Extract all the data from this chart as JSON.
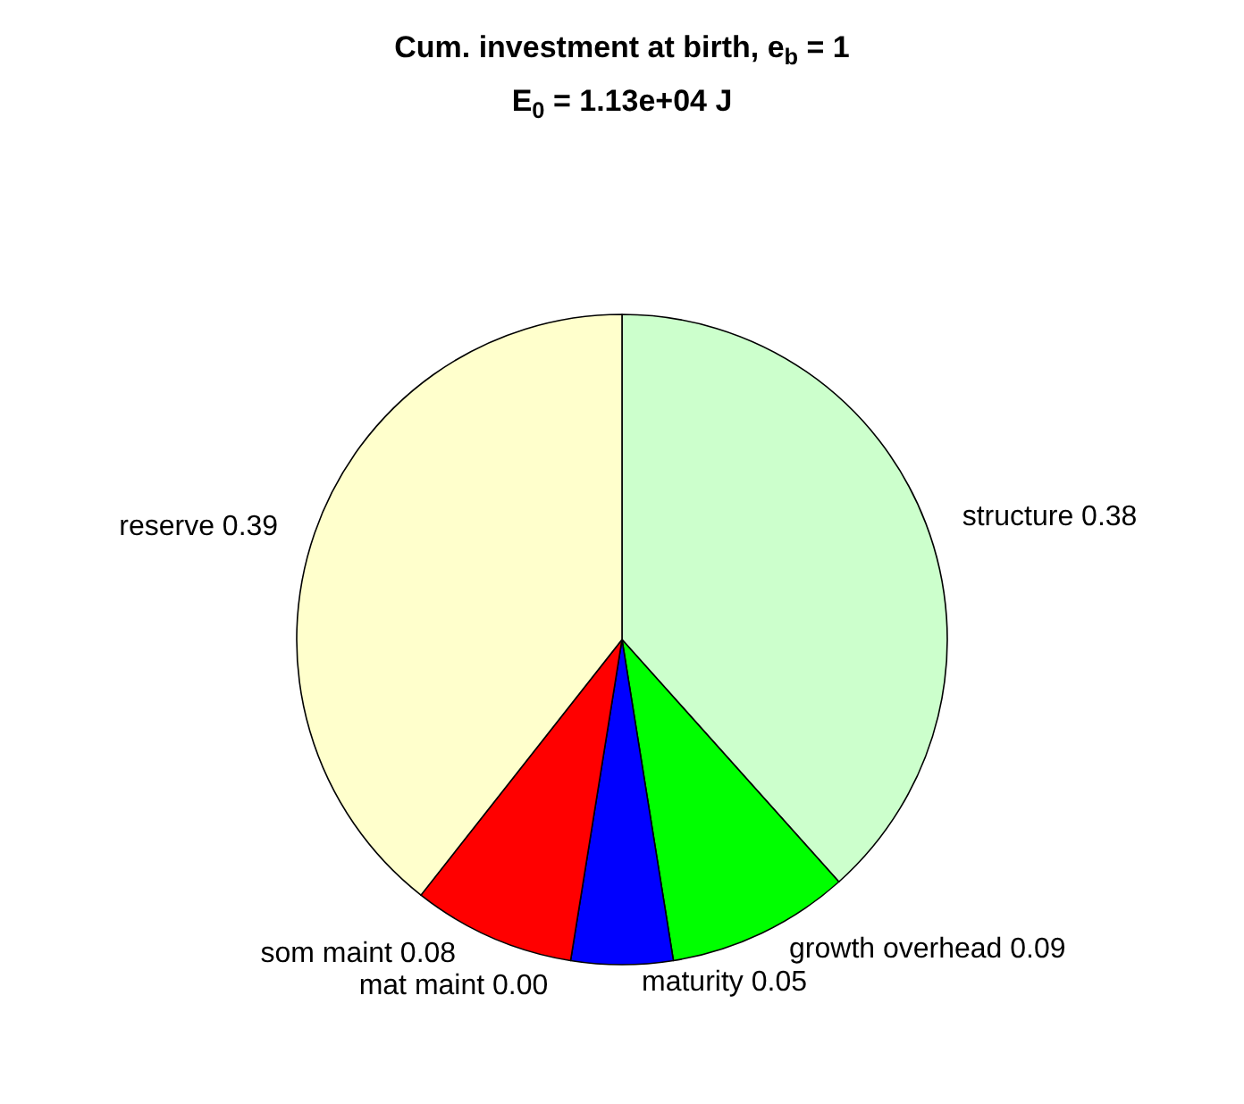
{
  "chart_data": {
    "type": "pie",
    "title": "Cum. investment at birth, e$_{b}$ = 1",
    "subtitle": "E$_{0}$ = 1.13e+04 J",
    "categories": [
      "structure",
      "growth overhead",
      "maturity",
      "mat maint",
      "som maint",
      "reserve"
    ],
    "values": [
      0.38,
      0.09,
      0.05,
      0.0,
      0.08,
      0.39
    ],
    "value_labels": [
      "0.38",
      "0.09",
      "0.05",
      "0.00",
      "0.08",
      "0.39"
    ],
    "colors": [
      "#ccffcc",
      "#00ff00",
      "#0000ff",
      "#ff00ff",
      "#ff0000",
      "#ffffcc"
    ],
    "legend": false
  }
}
